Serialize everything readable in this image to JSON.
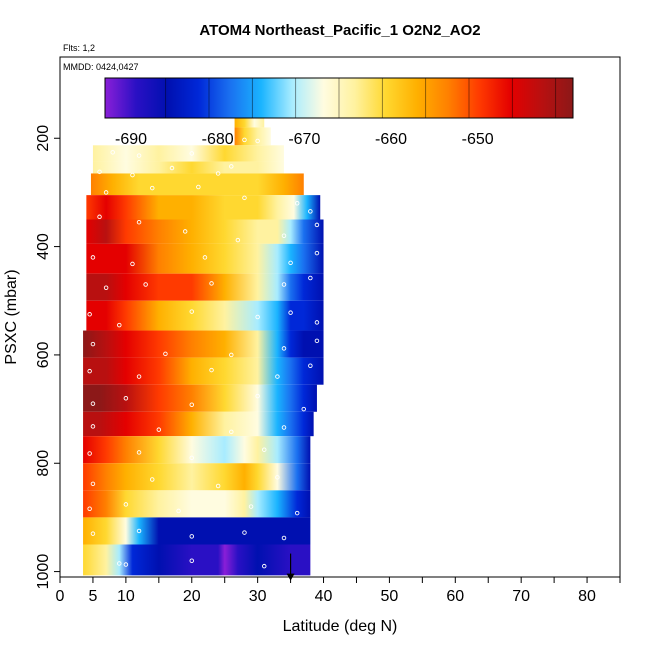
{
  "chart_data": {
    "type": "heatmap",
    "title": "ATOM4 Northeast_Pacific_1 O2N2_AO2",
    "note_flights": "Flts: 1,2",
    "note_dates": "MMDD: 0424,0427",
    "xlabel": "Latitude (deg N)",
    "ylabel": "PSXC (mbar)",
    "xlim": [
      0,
      85
    ],
    "ylim": [
      1010,
      50
    ],
    "y_inverted": true,
    "x_ticks": [
      0,
      5,
      10,
      20,
      30,
      40,
      50,
      60,
      70,
      80
    ],
    "x_minor_ticks": [
      15,
      25,
      35,
      45,
      55,
      65,
      75,
      85
    ],
    "y_ticks": [
      200,
      400,
      600,
      800,
      1000
    ],
    "grid": false,
    "colorbar": {
      "ticks": [
        -690,
        -680,
        -670,
        -660,
        -650
      ],
      "range": [
        -693,
        -639
      ],
      "placement": "top-inside",
      "colors": [
        "#8a1fd8",
        "#2a10c4",
        "#0010b0",
        "#0028d8",
        "#1a70f0",
        "#1ab4ff",
        "#a8ecff",
        "#fffce0",
        "#fff2a0",
        "#ffd830",
        "#ffb000",
        "#ff8000",
        "#ff3a00",
        "#e40000",
        "#b81010",
        "#8c1818"
      ]
    },
    "legend": "colorbar-top",
    "marker": "pressure-arrow",
    "marker_x": 35,
    "marker_y": 1000,
    "rows": [
      {
        "p_top": 163,
        "p_bot": 180,
        "lat_min": 26.5,
        "lat_max": 31,
        "knots": [
          [
            26.5,
            -656
          ],
          [
            28,
            -662
          ],
          [
            29.5,
            -668
          ],
          [
            31,
            -665
          ]
        ]
      },
      {
        "p_top": 180,
        "p_bot": 213,
        "lat_min": 26.5,
        "lat_max": 32,
        "knots": [
          [
            26.5,
            -654
          ],
          [
            28,
            -660
          ],
          [
            30,
            -664
          ],
          [
            32,
            -668
          ]
        ]
      },
      {
        "p_top": 213,
        "p_bot": 243,
        "lat_min": 5,
        "lat_max": 34,
        "knots": [
          [
            5,
            -666
          ],
          [
            10,
            -668
          ],
          [
            15,
            -665
          ],
          [
            20,
            -667
          ],
          [
            25,
            -662
          ],
          [
            30,
            -666
          ],
          [
            34,
            -668
          ]
        ]
      },
      {
        "p_top": 243,
        "p_bot": 265,
        "lat_min": 5,
        "lat_max": 34,
        "knots": [
          [
            5,
            -664
          ],
          [
            10,
            -668
          ],
          [
            15,
            -666
          ],
          [
            20,
            -662
          ],
          [
            25,
            -664
          ],
          [
            30,
            -666
          ],
          [
            34,
            -668
          ]
        ]
      },
      {
        "p_top": 265,
        "p_bot": 305,
        "lat_min": 4.7,
        "lat_max": 37,
        "knots": [
          [
            4.7,
            -654
          ],
          [
            8,
            -657
          ],
          [
            12,
            -660
          ],
          [
            18,
            -662
          ],
          [
            24,
            -661
          ],
          [
            30,
            -660
          ],
          [
            34,
            -656
          ],
          [
            37,
            -654
          ]
        ]
      },
      {
        "p_top": 305,
        "p_bot": 350,
        "lat_min": 4,
        "lat_max": 39.5,
        "knots": [
          [
            4,
            -650
          ],
          [
            7,
            -648
          ],
          [
            10,
            -652
          ],
          [
            15,
            -656
          ],
          [
            20,
            -658
          ],
          [
            25,
            -660
          ],
          [
            30,
            -662
          ],
          [
            33,
            -664
          ],
          [
            35.5,
            -668
          ],
          [
            37.5,
            -674
          ],
          [
            39.5,
            -684
          ]
        ]
      },
      {
        "p_top": 350,
        "p_bot": 395,
        "lat_min": 4,
        "lat_max": 40,
        "knots": [
          [
            4,
            -646
          ],
          [
            7,
            -645
          ],
          [
            10,
            -650
          ],
          [
            15,
            -654
          ],
          [
            20,
            -656
          ],
          [
            25,
            -660
          ],
          [
            30,
            -664
          ],
          [
            33,
            -666
          ],
          [
            35,
            -672
          ],
          [
            37,
            -677
          ],
          [
            40,
            -683
          ]
        ]
      },
      {
        "p_top": 395,
        "p_bot": 450,
        "lat_min": 4,
        "lat_max": 40,
        "knots": [
          [
            4,
            -646
          ],
          [
            6,
            -646
          ],
          [
            10,
            -649
          ],
          [
            15,
            -653
          ],
          [
            20,
            -656
          ],
          [
            25,
            -660
          ],
          [
            30,
            -665
          ],
          [
            33,
            -670
          ],
          [
            35,
            -676
          ],
          [
            37,
            -679
          ],
          [
            40,
            -683
          ]
        ]
      },
      {
        "p_top": 450,
        "p_bot": 500,
        "lat_min": 4,
        "lat_max": 40,
        "knots": [
          [
            4,
            -643
          ],
          [
            7,
            -644
          ],
          [
            10,
            -649
          ],
          [
            15,
            -651
          ],
          [
            20,
            -652
          ],
          [
            25,
            -657
          ],
          [
            30,
            -664
          ],
          [
            33,
            -671
          ],
          [
            35,
            -678
          ],
          [
            37,
            -681
          ],
          [
            40,
            -684
          ]
        ]
      },
      {
        "p_top": 500,
        "p_bot": 555,
        "lat_min": 4,
        "lat_max": 40,
        "knots": [
          [
            4,
            -648
          ],
          [
            7,
            -649
          ],
          [
            10,
            -651
          ],
          [
            15,
            -656
          ],
          [
            20,
            -660
          ],
          [
            25,
            -664
          ],
          [
            30,
            -670
          ],
          [
            33,
            -676
          ],
          [
            35,
            -680
          ],
          [
            37,
            -682
          ],
          [
            40,
            -685
          ]
        ]
      },
      {
        "p_top": 555,
        "p_bot": 605,
        "lat_min": 3.5,
        "lat_max": 40,
        "knots": [
          [
            3.5,
            -642
          ],
          [
            7,
            -643
          ],
          [
            10,
            -647
          ],
          [
            15,
            -652
          ],
          [
            20,
            -654
          ],
          [
            25,
            -659
          ],
          [
            30,
            -665
          ],
          [
            33,
            -675
          ],
          [
            35,
            -681
          ],
          [
            37,
            -683
          ],
          [
            40,
            -685
          ]
        ]
      },
      {
        "p_top": 605,
        "p_bot": 655,
        "lat_min": 3.5,
        "lat_max": 40,
        "knots": [
          [
            3.5,
            -643
          ],
          [
            7,
            -645
          ],
          [
            10,
            -648
          ],
          [
            15,
            -652
          ],
          [
            20,
            -656
          ],
          [
            25,
            -661
          ],
          [
            30,
            -666
          ],
          [
            33,
            -674
          ],
          [
            35,
            -679
          ],
          [
            37,
            -682
          ],
          [
            40,
            -685
          ]
        ]
      },
      {
        "p_top": 655,
        "p_bot": 705,
        "lat_min": 3.5,
        "lat_max": 39,
        "knots": [
          [
            3.5,
            -640
          ],
          [
            6,
            -641
          ],
          [
            10,
            -645
          ],
          [
            15,
            -650
          ],
          [
            20,
            -655
          ],
          [
            25,
            -662
          ],
          [
            30,
            -669
          ],
          [
            33,
            -675
          ],
          [
            35,
            -679
          ],
          [
            37,
            -682
          ],
          [
            39,
            -685
          ]
        ]
      },
      {
        "p_top": 705,
        "p_bot": 750,
        "lat_min": 3.5,
        "lat_max": 38.5,
        "knots": [
          [
            3.5,
            -643
          ],
          [
            6,
            -644
          ],
          [
            10,
            -648
          ],
          [
            15,
            -652
          ],
          [
            20,
            -658
          ],
          [
            25,
            -664
          ],
          [
            30,
            -669
          ],
          [
            33,
            -674
          ],
          [
            35,
            -678
          ],
          [
            37,
            -682
          ],
          [
            38.5,
            -684
          ]
        ]
      },
      {
        "p_top": 750,
        "p_bot": 800,
        "lat_min": 3.5,
        "lat_max": 38,
        "knots": [
          [
            3.5,
            -648
          ],
          [
            7,
            -650
          ],
          [
            10,
            -655
          ],
          [
            15,
            -662
          ],
          [
            20,
            -667
          ],
          [
            25,
            -670
          ],
          [
            28,
            -669
          ],
          [
            30,
            -666
          ],
          [
            33,
            -672
          ],
          [
            36,
            -679
          ],
          [
            38,
            -684
          ]
        ]
      },
      {
        "p_top": 800,
        "p_bot": 850,
        "lat_min": 3.5,
        "lat_max": 38,
        "knots": [
          [
            3.5,
            -652
          ],
          [
            7,
            -654
          ],
          [
            10,
            -658
          ],
          [
            15,
            -660
          ],
          [
            20,
            -664
          ],
          [
            25,
            -660
          ],
          [
            28,
            -656
          ],
          [
            30,
            -662
          ],
          [
            33,
            -669
          ],
          [
            36,
            -678
          ],
          [
            38,
            -684
          ]
        ]
      },
      {
        "p_top": 850,
        "p_bot": 900,
        "lat_min": 3.5,
        "lat_max": 38,
        "knots": [
          [
            3.5,
            -650
          ],
          [
            7,
            -654
          ],
          [
            10,
            -660
          ],
          [
            15,
            -664
          ],
          [
            20,
            -668
          ],
          [
            25,
            -668
          ],
          [
            28,
            -666
          ],
          [
            30,
            -670
          ],
          [
            33,
            -676
          ],
          [
            36,
            -682
          ],
          [
            38,
            -686
          ]
        ]
      },
      {
        "p_top": 900,
        "p_bot": 950,
        "lat_min": 3.5,
        "lat_max": 38,
        "knots": [
          [
            3.5,
            -656
          ],
          [
            7,
            -660
          ],
          [
            10,
            -668
          ],
          [
            12,
            -674
          ],
          [
            15,
            -683
          ],
          [
            20,
            -686
          ],
          [
            25,
            -686
          ],
          [
            30,
            -686
          ],
          [
            35,
            -686
          ],
          [
            38,
            -686
          ]
        ]
      },
      {
        "p_top": 950,
        "p_bot": 1007,
        "lat_min": 3.5,
        "lat_max": 38,
        "knots": [
          [
            3.5,
            -660
          ],
          [
            7,
            -664
          ],
          [
            9,
            -672
          ],
          [
            11,
            -681
          ],
          [
            15,
            -686
          ],
          [
            20,
            -687
          ],
          [
            24,
            -688
          ],
          [
            25,
            -693
          ],
          [
            27,
            -689
          ],
          [
            30,
            -686
          ],
          [
            35,
            -687
          ],
          [
            38,
            -687
          ]
        ]
      }
    ],
    "sample_points": [
      {
        "lat": 28,
        "p": 203
      },
      {
        "lat": 30,
        "p": 205
      },
      {
        "lat": 8,
        "p": 226
      },
      {
        "lat": 12,
        "p": 232
      },
      {
        "lat": 20,
        "p": 228
      },
      {
        "lat": 26,
        "p": 252
      },
      {
        "lat": 6,
        "p": 262
      },
      {
        "lat": 11,
        "p": 268
      },
      {
        "lat": 17,
        "p": 255
      },
      {
        "lat": 24,
        "p": 265
      },
      {
        "lat": 7,
        "p": 300
      },
      {
        "lat": 14,
        "p": 292
      },
      {
        "lat": 21,
        "p": 290
      },
      {
        "lat": 28,
        "p": 310
      },
      {
        "lat": 36,
        "p": 320
      },
      {
        "lat": 38,
        "p": 335
      },
      {
        "lat": 6,
        "p": 345
      },
      {
        "lat": 12,
        "p": 355
      },
      {
        "lat": 19,
        "p": 372
      },
      {
        "lat": 27,
        "p": 388
      },
      {
        "lat": 34,
        "p": 380
      },
      {
        "lat": 39,
        "p": 360
      },
      {
        "lat": 5,
        "p": 420
      },
      {
        "lat": 11,
        "p": 432
      },
      {
        "lat": 22,
        "p": 420
      },
      {
        "lat": 35,
        "p": 430
      },
      {
        "lat": 39,
        "p": 412
      },
      {
        "lat": 7,
        "p": 476
      },
      {
        "lat": 13,
        "p": 470
      },
      {
        "lat": 23,
        "p": 468
      },
      {
        "lat": 34,
        "p": 470
      },
      {
        "lat": 38,
        "p": 458
      },
      {
        "lat": 4.5,
        "p": 525
      },
      {
        "lat": 9,
        "p": 545
      },
      {
        "lat": 20,
        "p": 520
      },
      {
        "lat": 30,
        "p": 530
      },
      {
        "lat": 35,
        "p": 522
      },
      {
        "lat": 39,
        "p": 540
      },
      {
        "lat": 5,
        "p": 580
      },
      {
        "lat": 16,
        "p": 598
      },
      {
        "lat": 26,
        "p": 600
      },
      {
        "lat": 34,
        "p": 588
      },
      {
        "lat": 39,
        "p": 574
      },
      {
        "lat": 4.5,
        "p": 630
      },
      {
        "lat": 12,
        "p": 640
      },
      {
        "lat": 23,
        "p": 628
      },
      {
        "lat": 33,
        "p": 640
      },
      {
        "lat": 38,
        "p": 620
      },
      {
        "lat": 5,
        "p": 690
      },
      {
        "lat": 10,
        "p": 680
      },
      {
        "lat": 20,
        "p": 692
      },
      {
        "lat": 30,
        "p": 676
      },
      {
        "lat": 37,
        "p": 700
      },
      {
        "lat": 5,
        "p": 732
      },
      {
        "lat": 15,
        "p": 738
      },
      {
        "lat": 26,
        "p": 742
      },
      {
        "lat": 34,
        "p": 734
      },
      {
        "lat": 4.5,
        "p": 782
      },
      {
        "lat": 12,
        "p": 780
      },
      {
        "lat": 20,
        "p": 790
      },
      {
        "lat": 31,
        "p": 775
      },
      {
        "lat": 5,
        "p": 838
      },
      {
        "lat": 14,
        "p": 830
      },
      {
        "lat": 24,
        "p": 842
      },
      {
        "lat": 33,
        "p": 826
      },
      {
        "lat": 4.5,
        "p": 884
      },
      {
        "lat": 10,
        "p": 876
      },
      {
        "lat": 18,
        "p": 888
      },
      {
        "lat": 29,
        "p": 880
      },
      {
        "lat": 36,
        "p": 892
      },
      {
        "lat": 5,
        "p": 930
      },
      {
        "lat": 12,
        "p": 925
      },
      {
        "lat": 20,
        "p": 935
      },
      {
        "lat": 28,
        "p": 928
      },
      {
        "lat": 34,
        "p": 938
      },
      {
        "lat": 9,
        "p": 985
      },
      {
        "lat": 10,
        "p": 987
      },
      {
        "lat": 20,
        "p": 980
      },
      {
        "lat": 31,
        "p": 990
      }
    ]
  }
}
